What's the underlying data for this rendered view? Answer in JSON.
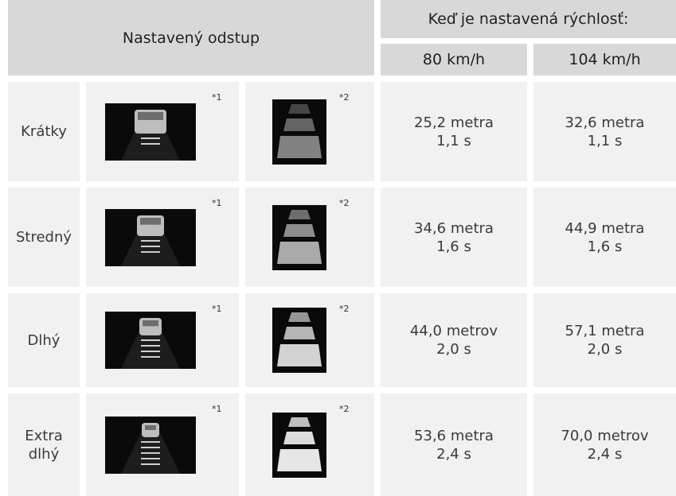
{
  "header": {
    "title": "Nastavený odstup",
    "speed_title": "Keď je nastavená rýchlosť:",
    "speeds": [
      "80 km/h",
      "104 km/h"
    ]
  },
  "rows": [
    {
      "label": "Krátky",
      "note1": "*1",
      "note2": "*2",
      "values": [
        [
          "25,2 metra",
          "1,1 s"
        ],
        [
          "32,6 metra",
          "1,1 s"
        ]
      ]
    },
    {
      "label": "Stredný",
      "note1": "*1",
      "note2": "*2",
      "values": [
        [
          "34,6 metra",
          "1,6 s"
        ],
        [
          "44,9 metra",
          "1,6 s"
        ]
      ]
    },
    {
      "label": "Dlhý",
      "note1": "*1",
      "note2": "*2",
      "values": [
        [
          "44,0 metrov",
          "2,0 s"
        ],
        [
          "57,1 metra",
          "2,0 s"
        ]
      ]
    },
    {
      "label": "Extra dlhý",
      "note1": "*1",
      "note2": "*2",
      "values": [
        [
          "53,6 metra",
          "2,4 s"
        ],
        [
          "70,0 metrov",
          "2,4 s"
        ]
      ]
    }
  ]
}
